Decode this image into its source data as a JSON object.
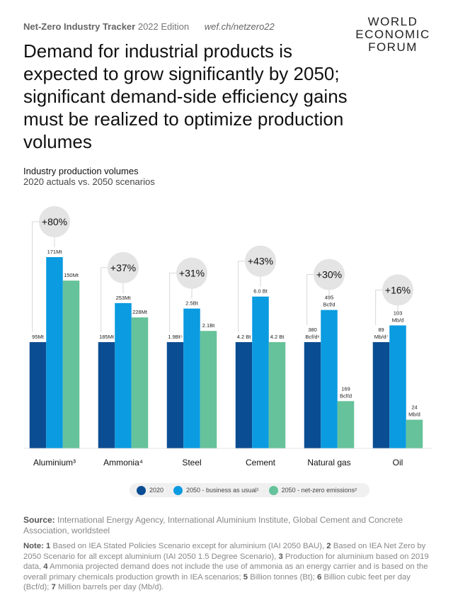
{
  "header": {
    "tracker": "Net-Zero Industry Tracker",
    "edition": "2022 Edition",
    "url": "wef.ch/netzero22"
  },
  "logo": {
    "line1": "WORLD",
    "line2": "ECONOMIC",
    "line3": "FORUM"
  },
  "title": "Demand for industrial products is expected to grow significantly by 2050; significant demand-side efficiency gains must be realized to optimize production volumes",
  "subtitle": {
    "line1": "Industry production volumes",
    "line2": "2020 actuals vs. 2050 scenarios"
  },
  "colors": {
    "2020": "#0b4d92",
    "bau": "#0a9be0",
    "nz": "#66c29a",
    "bubble": "#e4e4e4"
  },
  "chart_data": {
    "type": "bar",
    "title": "Industry production volumes",
    "subtitle": "2020 actuals vs. 2050 scenarios",
    "categories": [
      "Aluminium³",
      "Ammonia⁴",
      "Steel",
      "Cement",
      "Natural gas",
      "Oil"
    ],
    "series": [
      {
        "name": "2020",
        "values": [
          95,
          185,
          1.9,
          4.2,
          380,
          89
        ],
        "labels": [
          "95Mt",
          "185Mt",
          "1.9Bt⁵",
          "4.2 Bt",
          "380 Bcf/d⁶",
          "89 Mb/d⁷"
        ]
      },
      {
        "name": "2050 - business as usual¹",
        "values": [
          171,
          253,
          2.5,
          6.0,
          495,
          103
        ],
        "labels": [
          "171Mt",
          "253Mt",
          "2.5Bt",
          "6.0 Bt",
          "495 Bcf/d",
          "103 Mb/d"
        ]
      },
      {
        "name": "2050 - net-zero emissions²",
        "values": [
          150,
          228,
          2.1,
          4.2,
          169,
          24
        ],
        "labels": [
          "150Mt",
          "228Mt",
          "2.1Bt",
          "4.2 Bt",
          "169 Bcf/d",
          "24 Mb/d"
        ]
      }
    ],
    "growth": [
      "+80%",
      "+37%",
      "+31%",
      "+43%",
      "+30%",
      "+16%"
    ],
    "legend_position": "bottom-center"
  },
  "source": {
    "label": "Source:",
    "text": "International Energy Agency, International Aluminium Institute, Global Cement and Concrete Association, worldsteel"
  },
  "note": {
    "label": "Note:",
    "items": [
      {
        "n": "1",
        "t": " Based on IEA Stated Policies Scenario except for aluminium (IAI 2050 BAU), "
      },
      {
        "n": "2",
        "t": " Based on IEA Net Zero by 2050 Scenario for all except aluminium (IAI 2050 1.5 Degree Scenario), "
      },
      {
        "n": "3",
        "t": " Production for aluminium based on 2019 data, "
      },
      {
        "n": "4",
        "t": " Ammonia projected demand does not include the use of ammonia as an energy carrier and is based on the overall primary chemicals production growth in IEA scenarios; "
      },
      {
        "n": "5",
        "t": " Billion tonnes (Bt); "
      },
      {
        "n": "6",
        "t": " Billion cubic feet per day (Bcf/d); "
      },
      {
        "n": "7",
        "t": " Million barrels per day (Mb/d)."
      }
    ]
  }
}
